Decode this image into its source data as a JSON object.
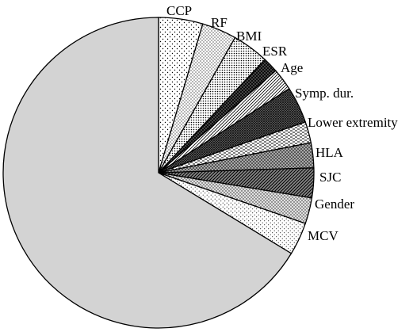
{
  "chart_data": {
    "type": "pie",
    "title": "",
    "start_angle_deg": 0,
    "direction": "clockwise",
    "slices": [
      {
        "label": "CCP",
        "value": 4.6,
        "pattern": "dots-sparse"
      },
      {
        "label": "RF",
        "value": 3.6,
        "pattern": "dots-fine"
      },
      {
        "label": "BMI",
        "value": 3.8,
        "pattern": "dots-dense"
      },
      {
        "label": "ESR",
        "value": 1.6,
        "pattern": "crosshatch-dark"
      },
      {
        "label": "Age",
        "value": 2.3,
        "pattern": "diagonal-fine"
      },
      {
        "label": "Symp. dur.",
        "value": 3.8,
        "pattern": "hatch-dark"
      },
      {
        "label": "Lower extremity",
        "value": 2.2,
        "pattern": "horizontal-dash"
      },
      {
        "label": "HLA",
        "value": 2.6,
        "pattern": "crosshatch"
      },
      {
        "label": "SJC",
        "value": 3.1,
        "pattern": "diagonal-dark"
      },
      {
        "label": "Gender",
        "value": 2.7,
        "pattern": "dots-gray"
      },
      {
        "label": "MCV",
        "value": 3.4,
        "pattern": "dots-fine-light"
      },
      {
        "label": "",
        "value": 66.3,
        "pattern": "solid-gray"
      }
    ],
    "colors": {
      "outline": "#000000",
      "remainder": "#d3d3d3"
    }
  }
}
